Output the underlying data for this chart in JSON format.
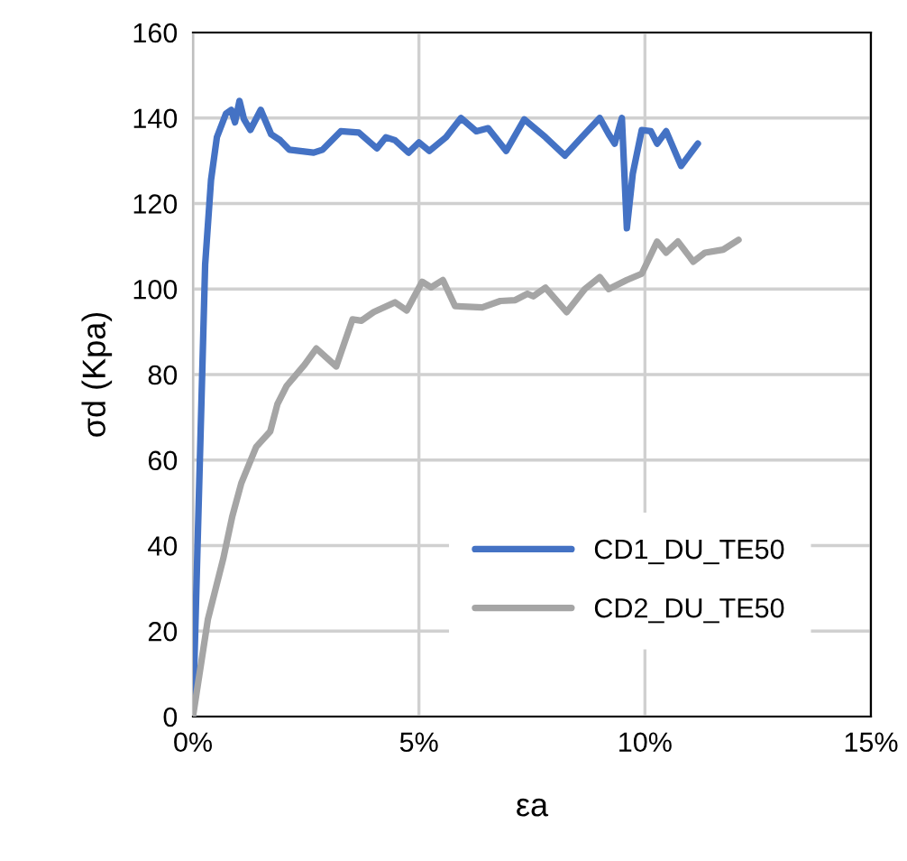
{
  "chart_data": {
    "type": "line",
    "xlabel": "εa",
    "ylabel": "σd (Kpa)",
    "xlim": [
      0,
      15
    ],
    "ylim": [
      0,
      160
    ],
    "xticks": [
      {
        "value": 0,
        "label": "0%"
      },
      {
        "value": 5,
        "label": "5%"
      },
      {
        "value": 10,
        "label": "10%"
      },
      {
        "value": 15,
        "label": "15%"
      }
    ],
    "yticks": [
      0,
      20,
      40,
      60,
      80,
      100,
      120,
      140,
      160
    ],
    "grid": true,
    "legend": "bottom right",
    "marker": "none",
    "line_style": "solid",
    "series": [
      {
        "name": "CD1_DU_TE50",
        "color": "#4472c4",
        "x": [
          0,
          0.27,
          0.4,
          0.53,
          0.73,
          0.85,
          0.93,
          1.03,
          1.13,
          1.27,
          1.5,
          1.73,
          1.93,
          2.13,
          2.67,
          2.87,
          3.27,
          3.67,
          4.07,
          4.27,
          4.47,
          4.77,
          5.0,
          5.23,
          5.6,
          5.93,
          6.27,
          6.53,
          6.93,
          7.33,
          7.8,
          8.23,
          8.6,
          9.0,
          9.2,
          9.33,
          9.49,
          9.6,
          9.73,
          9.93,
          10.13,
          10.27,
          10.47,
          10.8,
          11.17
        ],
        "values": [
          0,
          105.7,
          125.5,
          135.5,
          141,
          141.9,
          139,
          144,
          139.7,
          137.2,
          141.9,
          136.2,
          134.8,
          132.6,
          131.9,
          132.6,
          136.9,
          136.6,
          132.9,
          135.5,
          134.8,
          131.9,
          134.3,
          132.3,
          135.5,
          140,
          136.9,
          137.6,
          132.3,
          139.7,
          135.5,
          131.2,
          135.5,
          140,
          136.2,
          134,
          140,
          114.2,
          126.9,
          137.2,
          136.9,
          134,
          136.9,
          128.8,
          134
        ]
      },
      {
        "name": "CD2_DU_TE50",
        "color": "#a5a5a5",
        "x": [
          0,
          0.33,
          0.67,
          0.87,
          1.07,
          1.4,
          1.71,
          1.87,
          2.07,
          2.47,
          2.73,
          3.17,
          3.53,
          3.73,
          4.0,
          4.47,
          4.73,
          5.07,
          5.27,
          5.53,
          5.8,
          6.4,
          6.8,
          7.13,
          7.4,
          7.53,
          7.8,
          8.27,
          8.67,
          9.0,
          9.2,
          9.6,
          9.93,
          10.27,
          10.47,
          10.73,
          11.07,
          11.33,
          11.73,
          12.07
        ],
        "values": [
          0,
          22.7,
          36.9,
          46.8,
          54.6,
          63.1,
          66.7,
          73.1,
          77.3,
          82.3,
          86.1,
          81.9,
          92.9,
          92.6,
          94.6,
          96.9,
          95,
          101.7,
          100.4,
          102.1,
          96,
          95.7,
          97.2,
          97.4,
          98.9,
          98.3,
          100.3,
          94.6,
          100,
          102.8,
          100,
          102.1,
          103.6,
          111.1,
          108.5,
          111.1,
          106.4,
          108.5,
          109.2,
          111.5
        ]
      }
    ]
  }
}
